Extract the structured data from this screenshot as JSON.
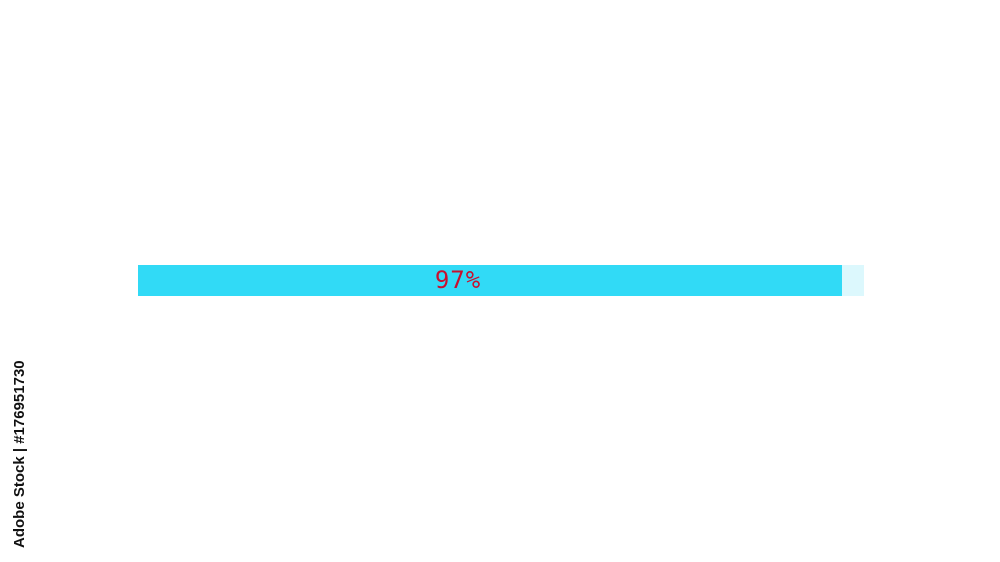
{
  "progress": {
    "percent": 97,
    "label": "97%",
    "fill_color": "#31daf6",
    "track_color": "#dcf8fd",
    "label_color": "#c8102e"
  },
  "watermark": {
    "text": "Adobe Stock | #176951730"
  }
}
